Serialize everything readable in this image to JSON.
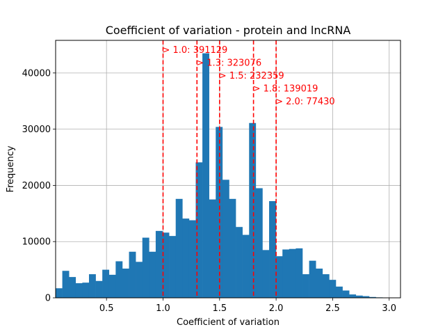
{
  "chart_data": {
    "type": "bar",
    "title": "Coefficient of variation - protein and lncRNA",
    "xlabel": "Coefficient of variation",
    "ylabel": "Frequency",
    "xlim": [
      0.05,
      3.1
    ],
    "ylim": [
      0,
      45800
    ],
    "xticks": [
      0.5,
      1.0,
      1.5,
      2.0,
      2.5,
      3.0
    ],
    "xtick_labels": [
      "0.5",
      "1.0",
      "1.5",
      "2.0",
      "2.5",
      "3.0"
    ],
    "yticks": [
      0,
      10000,
      20000,
      30000,
      40000
    ],
    "ytick_labels": [
      "0",
      "10000",
      "20000",
      "30000",
      "40000"
    ],
    "grid": true,
    "bar_color": "#1f77b4",
    "bin_edges_range": [
      0.05,
      3.0
    ],
    "bin_count": 50,
    "values": [
      1700,
      4800,
      3700,
      2600,
      2700,
      4200,
      3000,
      5000,
      4100,
      6500,
      5200,
      8200,
      6400,
      10700,
      8200,
      11900,
      11600,
      11000,
      17600,
      14100,
      13800,
      24100,
      43500,
      17500,
      30400,
      21000,
      17600,
      12600,
      11200,
      31100,
      19500,
      8500,
      17200,
      7400,
      8600,
      8700,
      8800,
      4200,
      6600,
      5200,
      4200,
      3200,
      2000,
      1300,
      600,
      400,
      300,
      150,
      80,
      30
    ],
    "thresholds": [
      {
        "x": 1.0,
        "label": "> 1.0: 391129"
      },
      {
        "x": 1.3,
        "label": "> 1.3: 323076"
      },
      {
        "x": 1.5,
        "label": "> 1.5: 232359"
      },
      {
        "x": 1.8,
        "label": "> 1.8: 139019"
      },
      {
        "x": 2.0,
        "label": "> 2.0: 77430"
      }
    ],
    "threshold_color": "#ff0000",
    "grid_color": "#b0b0b0"
  }
}
